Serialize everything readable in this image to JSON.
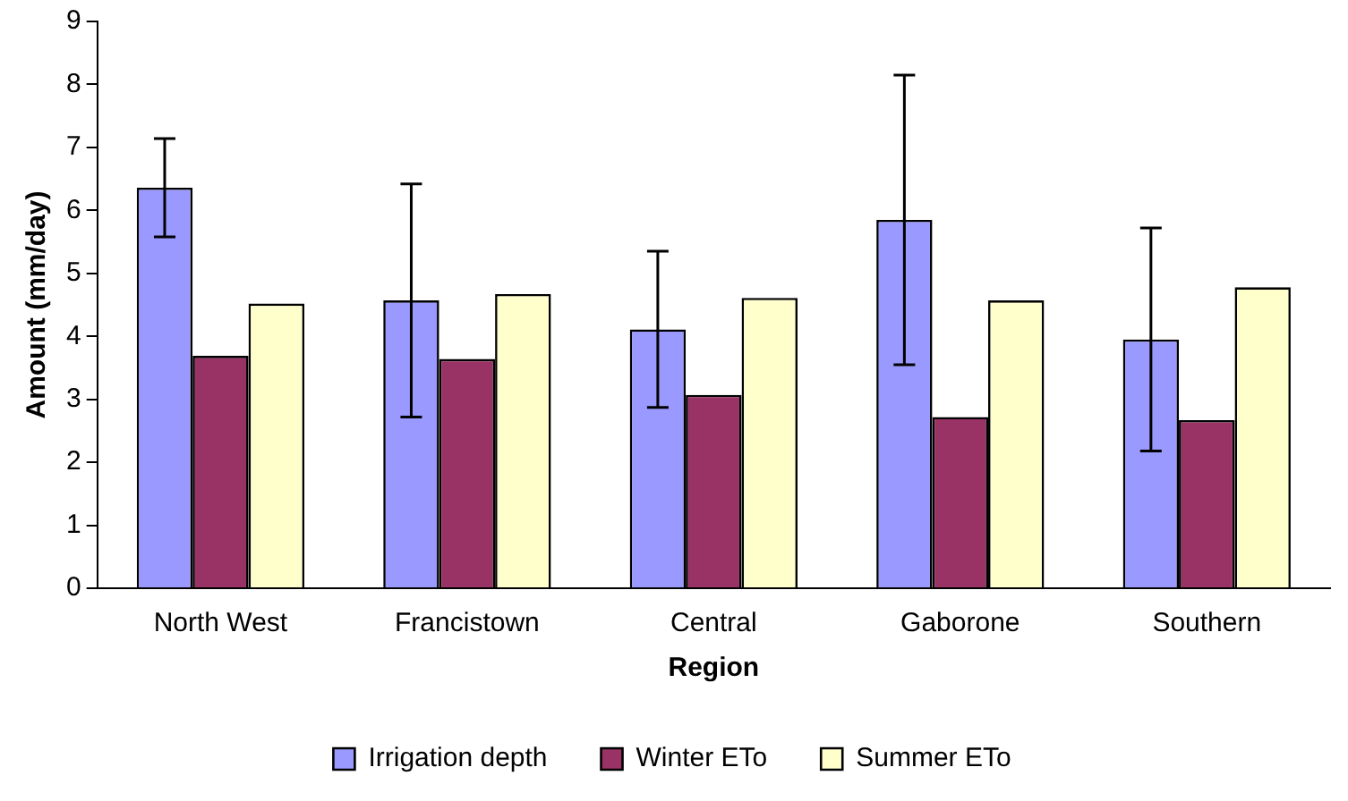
{
  "chart_data": {
    "type": "bar",
    "xlabel": "Region",
    "ylabel": "Amount (mm/day)",
    "categories": [
      "North West",
      "Francistown",
      "Central",
      "Gaborone",
      "Southern"
    ],
    "series": [
      {
        "name": "Irrigation depth",
        "color": "#9999ff",
        "values": [
          6.36,
          4.57,
          4.11,
          5.85,
          3.95
        ],
        "errors": [
          0.78,
          1.85,
          1.24,
          2.3,
          1.77
        ]
      },
      {
        "name": "Winter ETo",
        "color": "#993366",
        "values": [
          3.69,
          3.64,
          3.07,
          2.72,
          2.67
        ]
      },
      {
        "name": "Summer ETo",
        "color": "#ffffcc",
        "values": [
          4.52,
          4.67,
          4.61,
          4.57,
          4.78
        ]
      }
    ],
    "ylim": [
      0,
      9
    ],
    "yticks": [
      0,
      1,
      2,
      3,
      4,
      5,
      6,
      7,
      8,
      9
    ],
    "grid": false,
    "legend": "bottom"
  }
}
